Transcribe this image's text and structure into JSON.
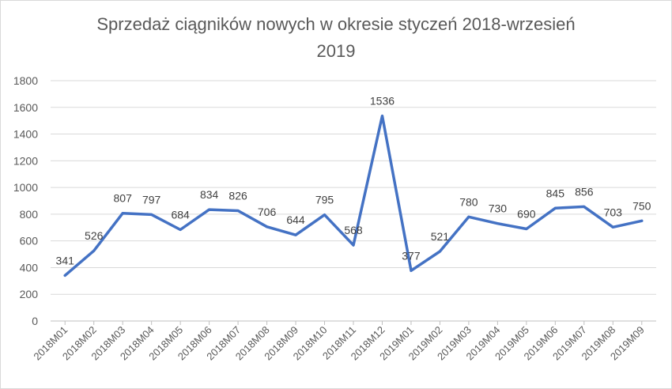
{
  "chart_data": {
    "type": "line",
    "title_line1": "Sprzedaż ciągników nowych w okresie styczeń 2018-wrzesień",
    "title_line2": "2019",
    "xlabel": "",
    "ylabel": "",
    "ylim": [
      0,
      1800
    ],
    "yticks": [
      "0",
      "200",
      "400",
      "600",
      "800",
      "1000",
      "1200",
      "1400",
      "1600",
      "1800"
    ],
    "grid": true,
    "legend": "none",
    "line_color": "#4472c4",
    "categories": [
      "2018M01",
      "2018M02",
      "2018M03",
      "2018M04",
      "2018M05",
      "2018M06",
      "2018M07",
      "2018M08",
      "2018M09",
      "2018M10",
      "2018M11",
      "2018M12",
      "2019M01",
      "2019M02",
      "2019M03",
      "2019M04",
      "2019M05",
      "2019M06",
      "2019M07",
      "2019M08",
      "2019M09"
    ],
    "values": [
      341,
      526,
      807,
      797,
      684,
      834,
      826,
      706,
      644,
      795,
      568,
      1536,
      377,
      521,
      780,
      730,
      690,
      845,
      856,
      703,
      750
    ]
  }
}
